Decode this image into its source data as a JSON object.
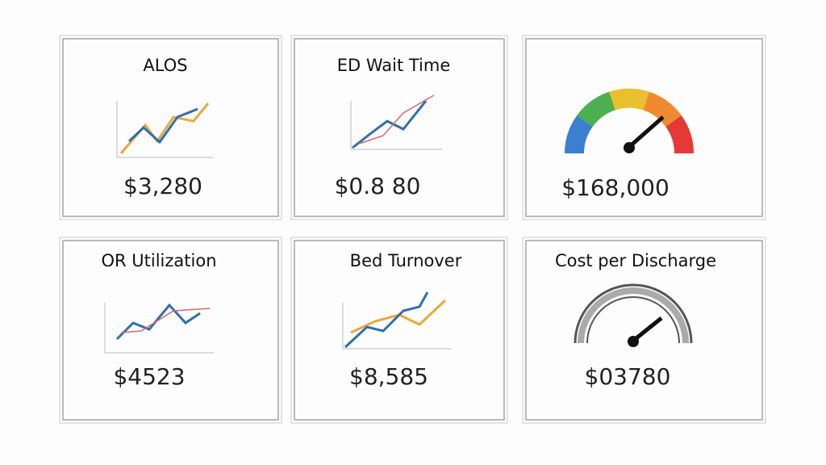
{
  "cards": [
    {
      "title": "ALOS",
      "value": "$3,280"
    },
    {
      "title": "ED Wait Time",
      "value": "$0.8 80"
    },
    {
      "title": "",
      "value": "$168,000"
    },
    {
      "title": "OR Utilization",
      "value": "$4523"
    },
    {
      "title": "Bed Turnover",
      "value": "$8,585"
    },
    {
      "title": "Cost per Discharge",
      "value": "$03780"
    }
  ]
}
